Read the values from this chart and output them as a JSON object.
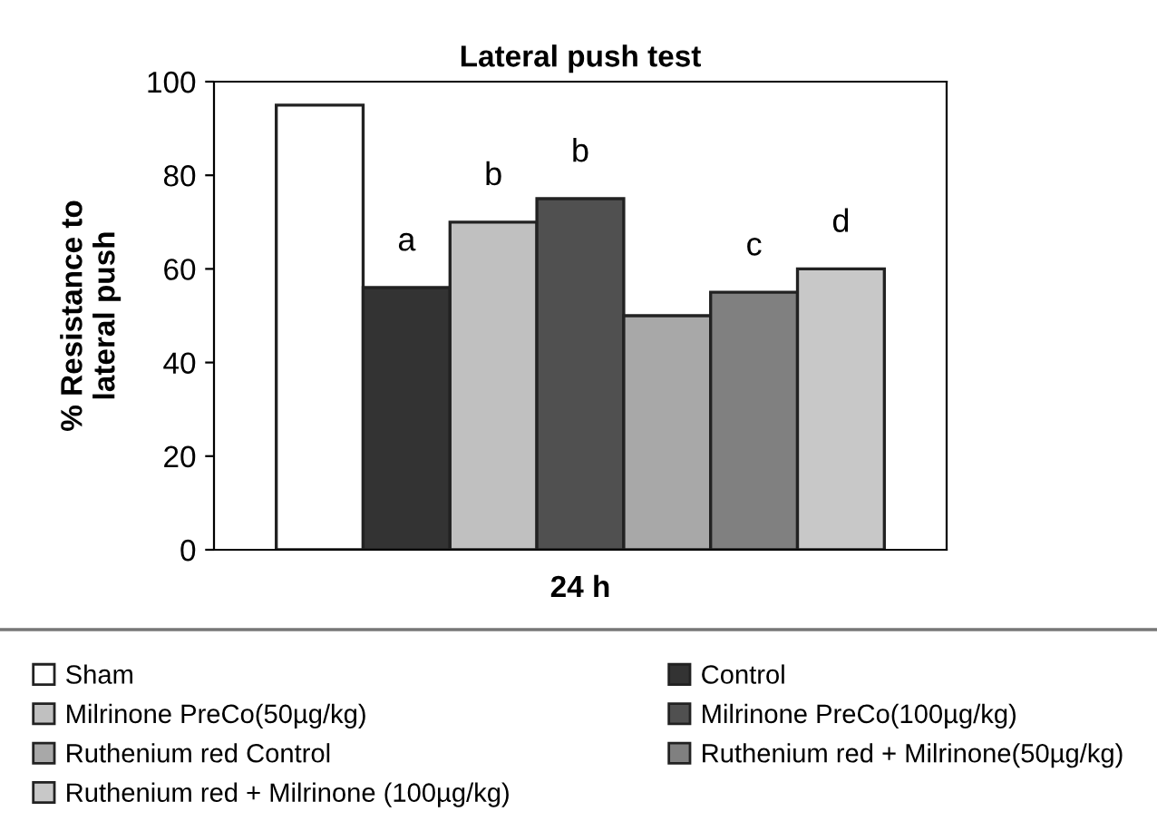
{
  "chart_data": {
    "type": "bar",
    "title": "Lateral push test",
    "ylabel": "% Resistance to\nlateral push",
    "categories": [
      "24 h"
    ],
    "series": [
      {
        "name": "Sham",
        "color": "#ffffff",
        "values": [
          95
        ]
      },
      {
        "name": "Control",
        "color": "#333333",
        "values": [
          56
        ],
        "value_labels": [
          "a"
        ]
      },
      {
        "name": "Milrinone PreCo(50µg/kg)",
        "color": "#c0c0c0",
        "values": [
          70
        ],
        "value_labels": [
          "b"
        ]
      },
      {
        "name": "Milrinone PreCo(100µg/kg)",
        "color": "#505050",
        "values": [
          75
        ],
        "value_labels": [
          "b"
        ]
      },
      {
        "name": "Ruthenium red Control",
        "color": "#a8a8a8",
        "values": [
          50
        ]
      },
      {
        "name": "Ruthenium red + Milrinone(50µg/kg)",
        "color": "#808080",
        "values": [
          55
        ],
        "value_labels": [
          "c"
        ]
      },
      {
        "name": "Ruthenium red + Milrinone (100µg/kg)",
        "color": "#c8c8c8",
        "values": [
          60
        ],
        "value_labels": [
          "d"
        ]
      }
    ],
    "ylim": [
      0,
      100
    ],
    "yticks": [
      0,
      20,
      40,
      60,
      80,
      100
    ],
    "grid": false,
    "legend": "bottom"
  }
}
